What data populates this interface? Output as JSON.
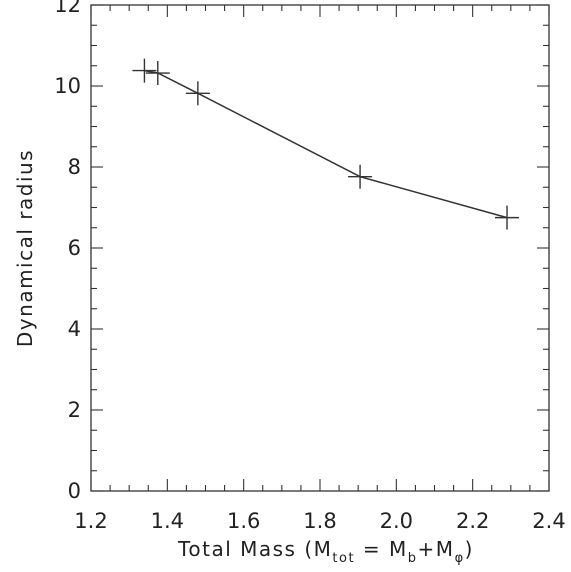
{
  "chart_data": {
    "type": "line",
    "title": "",
    "xlabel": {
      "prefix": "Total Mass (M",
      "sub1": "tot",
      "middle": " = M",
      "sub2": "b",
      "plus": "+M",
      "sub3": "φ",
      "suffix": ")"
    },
    "ylabel": "Dynamical radius",
    "xlim": [
      1.2,
      2.4
    ],
    "ylim": [
      0,
      12
    ],
    "x_ticks": [
      1.2,
      1.4,
      1.6,
      1.8,
      2.0,
      2.2,
      2.4
    ],
    "x_tick_labels": [
      "1.2",
      "1.4",
      "1.6",
      "1.8",
      "2.0",
      "2.2",
      "2.4"
    ],
    "y_ticks": [
      0,
      2,
      4,
      6,
      8,
      10,
      12
    ],
    "y_tick_labels": [
      "0",
      "2",
      "4",
      "6",
      "8",
      "10",
      "12"
    ],
    "x_minor_step": 0.05,
    "y_minor_step": 0.5,
    "marker": "plus",
    "grid": false,
    "colors": {
      "line": "#333333",
      "axis": "#333333",
      "text": "#222222"
    },
    "series": [
      {
        "x": [
          1.34,
          1.375,
          1.48,
          1.905,
          2.29
        ],
        "y": [
          10.38,
          10.32,
          9.82,
          7.76,
          6.75
        ]
      }
    ]
  }
}
